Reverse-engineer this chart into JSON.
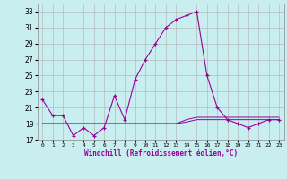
{
  "x": [
    0,
    1,
    2,
    3,
    4,
    5,
    6,
    7,
    8,
    9,
    10,
    11,
    12,
    13,
    14,
    15,
    16,
    17,
    18,
    19,
    20,
    21,
    22,
    23
  ],
  "y_main": [
    22,
    20,
    20,
    17.5,
    18.5,
    17.5,
    18.5,
    22.5,
    19.5,
    24.5,
    27,
    29,
    31,
    32,
    32.5,
    33,
    25,
    21,
    19.5,
    19,
    18.5,
    19,
    19.5,
    19.5
  ],
  "y_flat1": [
    19,
    19,
    19,
    19,
    19,
    19,
    19,
    19,
    19,
    19,
    19,
    19,
    19,
    19,
    19,
    19,
    19,
    19,
    19,
    19,
    19,
    19,
    19,
    19
  ],
  "y_flat2": [
    19,
    19,
    19,
    19,
    19,
    19,
    19,
    19,
    19,
    19,
    19,
    19,
    19,
    19,
    19.2,
    19.5,
    19.5,
    19.5,
    19.5,
    19.5,
    19.5,
    19.5,
    19.5,
    19.5
  ],
  "y_flat3": [
    19,
    19,
    19,
    19,
    19,
    19,
    19,
    19,
    19,
    19,
    19,
    19,
    19,
    19,
    19.5,
    19.8,
    19.8,
    19.8,
    19.8,
    19.8,
    19.8,
    19.8,
    19.8,
    19.8
  ],
  "color": "#990099",
  "bg_color": "#c8eef0",
  "grid_color": "#b0b0b0",
  "ylim": [
    17,
    34
  ],
  "xlim": [
    -0.5,
    23.5
  ],
  "yticks": [
    17,
    19,
    21,
    23,
    25,
    27,
    29,
    31,
    33
  ],
  "xticks": [
    0,
    1,
    2,
    3,
    4,
    5,
    6,
    7,
    8,
    9,
    10,
    11,
    12,
    13,
    14,
    15,
    16,
    17,
    18,
    19,
    20,
    21,
    22,
    23
  ],
  "xlabel": "Windchill (Refroidissement éolien,°C)"
}
